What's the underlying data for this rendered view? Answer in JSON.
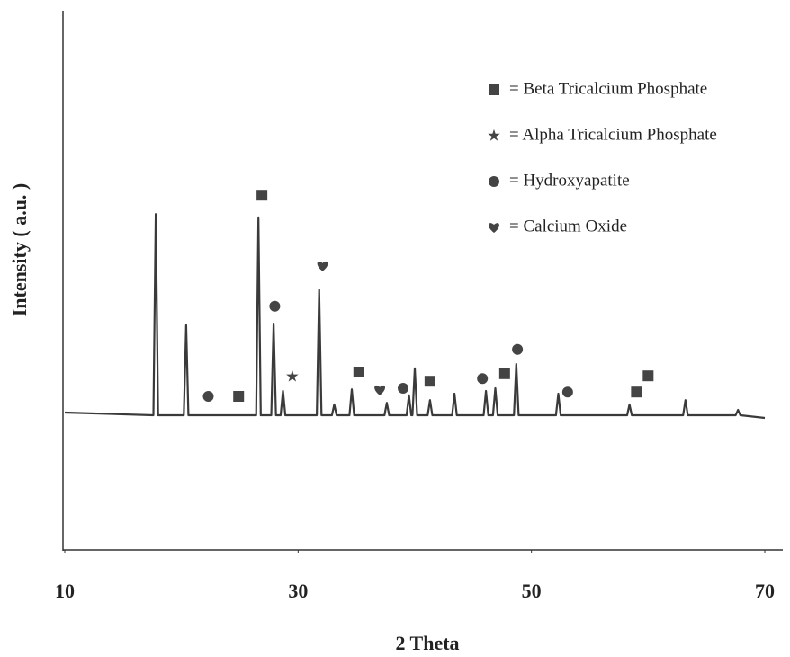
{
  "chart_data": {
    "type": "line",
    "x_label": "2 Theta",
    "y_label": "Intensity ( a.u. )",
    "xlim": [
      10,
      70
    ],
    "xticks": [
      10,
      30,
      50,
      70
    ],
    "ylim": [
      0,
      100
    ],
    "color": "#3a3a3a",
    "marker_color": "#444444",
    "x": [
      10,
      17.6,
      17.8,
      18.0,
      20.2,
      20.4,
      20.6,
      26.4,
      26.6,
      26.8,
      27.7,
      27.9,
      28.1,
      28.5,
      28.7,
      28.9,
      31.6,
      31.8,
      32.0,
      32.9,
      33.1,
      33.3,
      34.4,
      34.6,
      34.8,
      37.4,
      37.6,
      37.8,
      39.3,
      39.5,
      39.7,
      39.8,
      40.0,
      40.2,
      41.1,
      41.3,
      41.5,
      43.2,
      43.4,
      43.6,
      45.9,
      46.1,
      46.3,
      46.7,
      46.9,
      47.1,
      48.5,
      48.7,
      48.9,
      52.1,
      52.3,
      52.5,
      58.2,
      58.4,
      58.6,
      63.0,
      63.2,
      63.4,
      67.5,
      67.7,
      67.9,
      70
    ],
    "values": [
      25.5,
      25,
      62.3,
      25,
      25,
      41.7,
      25,
      25,
      61.7,
      25,
      25,
      42,
      25,
      25,
      29.5,
      25,
      25,
      48.3,
      25,
      25,
      27,
      25,
      25,
      29.8,
      25,
      25,
      27.3,
      25,
      25,
      28.7,
      25,
      25,
      33.7,
      25,
      25,
      27.8,
      25,
      25,
      29,
      25,
      25,
      29.5,
      25,
      25,
      30,
      25,
      25,
      34.5,
      25,
      25,
      29,
      25,
      25,
      27,
      25,
      25,
      27.8,
      25,
      25,
      26,
      25,
      24.5
    ],
    "phases": [
      {
        "name": "= Beta Tricalcium Phosphate",
        "shape": "square"
      },
      {
        "name": "= Alpha Tricalcium Phosphate",
        "shape": "star"
      },
      {
        "name": "=  Hydroxyapatite",
        "shape": "circle"
      },
      {
        "name": "= Calcium Oxide",
        "shape": "heart"
      }
    ],
    "markers": [
      {
        "phase": 0,
        "x": 26.9,
        "y": 65.8
      },
      {
        "phase": 0,
        "x": 24.9,
        "y": 28.5
      },
      {
        "phase": 0,
        "x": 35.2,
        "y": 33
      },
      {
        "phase": 0,
        "x": 41.3,
        "y": 31.3
      },
      {
        "phase": 0,
        "x": 47.7,
        "y": 32.7
      },
      {
        "phase": 0,
        "x": 59.0,
        "y": 29.3
      },
      {
        "phase": 0,
        "x": 60.0,
        "y": 32.3
      },
      {
        "phase": 1,
        "x": 29.5,
        "y": 32.2
      },
      {
        "phase": 2,
        "x": 22.3,
        "y": 28.5
      },
      {
        "phase": 2,
        "x": 28.0,
        "y": 45.2
      },
      {
        "phase": 2,
        "x": 39.0,
        "y": 30
      },
      {
        "phase": 2,
        "x": 45.8,
        "y": 31.8
      },
      {
        "phase": 2,
        "x": 48.8,
        "y": 37.2
      },
      {
        "phase": 2,
        "x": 53.1,
        "y": 29.3
      },
      {
        "phase": 3,
        "x": 32.1,
        "y": 52.7
      },
      {
        "phase": 3,
        "x": 37.0,
        "y": 29.7
      }
    ]
  }
}
